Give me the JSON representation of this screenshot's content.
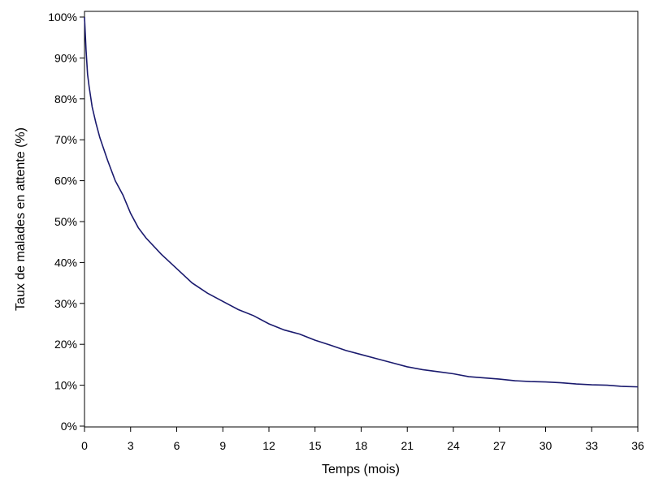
{
  "chart_data": {
    "type": "line",
    "xlabel": "Temps (mois)",
    "ylabel": "Taux de malades en attente (%)",
    "xlim": [
      0,
      36
    ],
    "ylim": [
      0,
      100
    ],
    "xticks": [
      0,
      3,
      6,
      9,
      12,
      15,
      18,
      21,
      24,
      27,
      30,
      33,
      36
    ],
    "yticks": [
      "0%",
      "10%",
      "20%",
      "30%",
      "40%",
      "50%",
      "60%",
      "70%",
      "80%",
      "90%",
      "100%"
    ],
    "ytick_values": [
      0,
      10,
      20,
      30,
      40,
      50,
      60,
      70,
      80,
      90,
      100
    ],
    "grid": false,
    "line_color": "#1a1a6e",
    "series": [
      {
        "x": [
          0,
          0.05,
          0.1,
          0.2,
          0.3,
          0.5,
          0.75,
          1,
          1.5,
          2,
          2.5,
          3,
          3.5,
          4,
          5,
          6,
          7,
          8,
          9,
          10,
          11,
          12,
          13,
          14,
          15,
          16,
          17,
          18,
          19,
          20,
          21,
          22,
          23,
          24,
          25,
          26,
          27,
          28,
          29,
          30,
          31,
          32,
          33,
          34,
          35,
          36
        ],
        "y": [
          100,
          96,
          92,
          86,
          83,
          78,
          74,
          70.5,
          65,
          60,
          56.5,
          52,
          48.5,
          46,
          42,
          38.5,
          35,
          32.5,
          30.5,
          28.5,
          27,
          25,
          23.5,
          22.5,
          21,
          19.8,
          18.5,
          17.5,
          16.5,
          15.5,
          14.5,
          13.8,
          13.3,
          12.8,
          12.1,
          11.8,
          11.5,
          11.1,
          10.9,
          10.8,
          10.6,
          10.3,
          10.1,
          10.0,
          9.7,
          9.6
        ]
      }
    ]
  }
}
